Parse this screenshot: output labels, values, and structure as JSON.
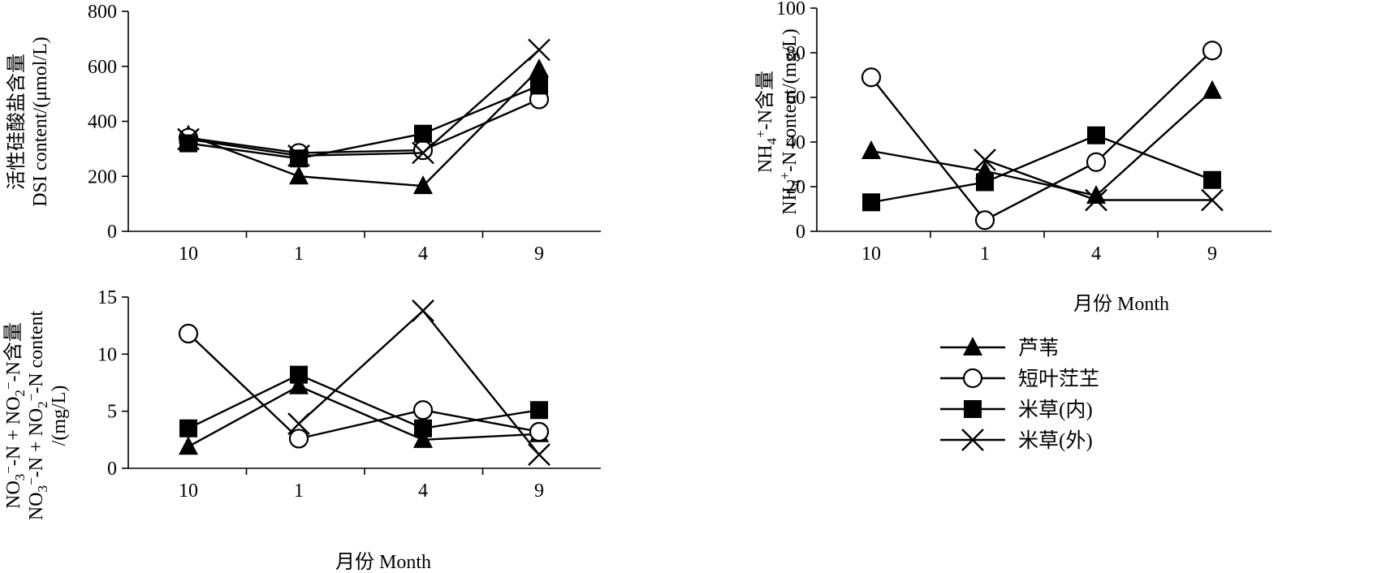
{
  "legend": [
    {
      "name": "芦苇",
      "marker": "triangle"
    },
    {
      "name": "短叶茳芏",
      "marker": "circle"
    },
    {
      "name": "米草(内)",
      "marker": "square"
    },
    {
      "name": "米草(外)",
      "marker": "cross"
    }
  ],
  "chart_data": [
    {
      "id": "dsi",
      "type": "line",
      "categories": [
        "10",
        "1",
        "4",
        "9"
      ],
      "ylim": [
        0,
        800
      ],
      "yticks": [
        "0",
        "200",
        "400",
        "600",
        "800"
      ],
      "ylabel_cn": "活性硅酸盐含量",
      "ylabel_en": "DSI content/(μmol/L)",
      "xlabel": "",
      "series": [
        {
          "name": "芦苇",
          "marker": "triangle",
          "values": [
            350,
            200,
            165,
            590
          ]
        },
        {
          "name": "短叶茳芏",
          "marker": "circle",
          "values": [
            340,
            285,
            295,
            480
          ]
        },
        {
          "name": "米草(内)",
          "marker": "square",
          "values": [
            320,
            265,
            355,
            530
          ]
        },
        {
          "name": "米草(外)",
          "marker": "cross",
          "values": [
            335,
            275,
            285,
            660
          ]
        }
      ]
    },
    {
      "id": "nh4",
      "type": "line",
      "categories": [
        "10",
        "1",
        "4",
        "9"
      ],
      "ylim": [
        0,
        100
      ],
      "yticks": [
        "0",
        "20",
        "40",
        "60",
        "80",
        "100"
      ],
      "ylabel_cn": "NH4⁺-N含量",
      "ylabel_en": "NH4⁺-N content/(mg/L)",
      "xlabel": "月份 Month",
      "series": [
        {
          "name": "芦苇",
          "marker": "triangle",
          "values": [
            36,
            27,
            16,
            63
          ]
        },
        {
          "name": "短叶茳芏",
          "marker": "circle",
          "values": [
            69,
            5,
            31,
            81
          ]
        },
        {
          "name": "米草(内)",
          "marker": "square",
          "values": [
            13,
            22,
            43,
            23
          ]
        },
        {
          "name": "米草(外)",
          "marker": "cross",
          "values": [
            null,
            32,
            14,
            14
          ]
        }
      ]
    },
    {
      "id": "no3no2",
      "type": "line",
      "categories": [
        "10",
        "1",
        "4",
        "9"
      ],
      "ylim": [
        0,
        15
      ],
      "yticks": [
        "0",
        "5",
        "10",
        "15"
      ],
      "ylabel_cn": "NO3⁻-N + NO2⁻-N含量",
      "ylabel_en": "NO3⁻-N + NO2⁻-N content",
      "ylabel_unit": "/(mg/L)",
      "xlabel": "月份 Month",
      "series": [
        {
          "name": "芦苇",
          "marker": "triangle",
          "values": [
            1.9,
            7.2,
            2.5,
            3.0
          ]
        },
        {
          "name": "短叶茳芏",
          "marker": "circle",
          "values": [
            11.8,
            2.6,
            5.1,
            3.2
          ]
        },
        {
          "name": "米草(内)",
          "marker": "square",
          "values": [
            3.5,
            8.2,
            3.5,
            5.1
          ]
        },
        {
          "name": "米草(外)",
          "marker": "cross",
          "values": [
            null,
            3.9,
            13.8,
            1.2
          ]
        }
      ]
    }
  ]
}
